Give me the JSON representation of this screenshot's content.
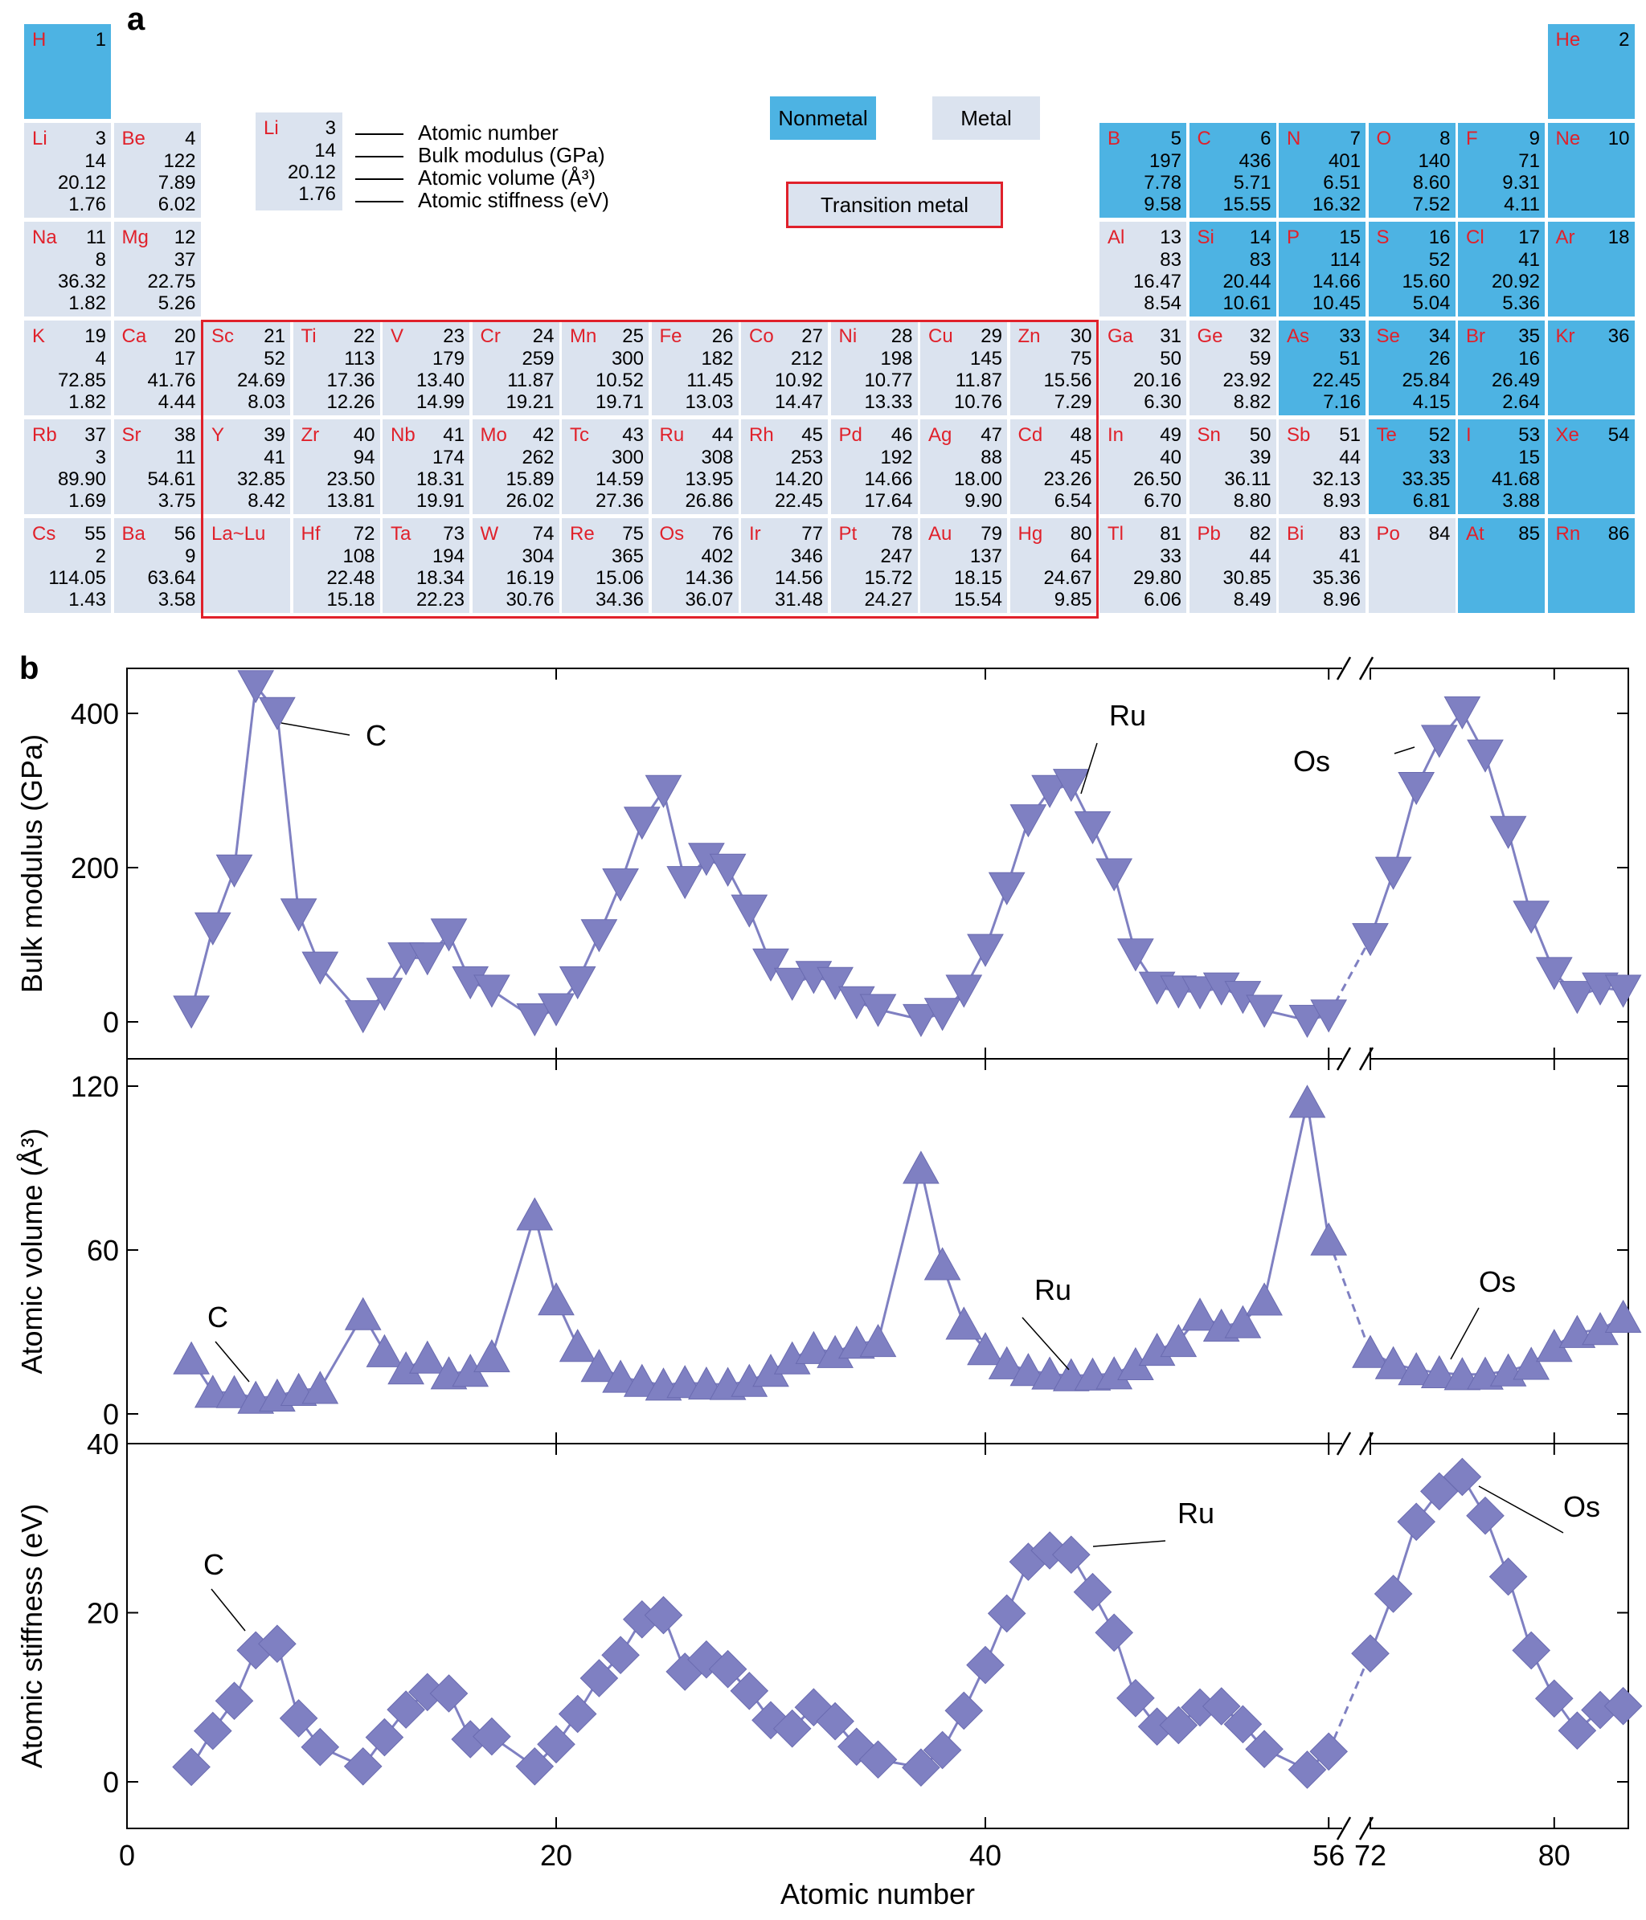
{
  "panel_a_label": "a",
  "panel_b_label": "b",
  "legend": {
    "nonmetal": "Nonmetal",
    "metal": "Metal",
    "transition_metal": "Transition metal",
    "key_symbol": "Li",
    "key_z": "3",
    "key_values": [
      "14",
      "20.12",
      "1.76"
    ],
    "key_labels": [
      "Atomic number",
      "Bulk modulus (GPa)",
      "Atomic volume (Å³)",
      "Atomic stiffness (eV)"
    ]
  },
  "elements": [
    {
      "sym": "H",
      "z": "1",
      "v": [],
      "cls": "nonmetal",
      "r": 0,
      "c": 0
    },
    {
      "sym": "He",
      "z": "2",
      "v": [],
      "cls": "nonmetal",
      "r": 0,
      "c": 17
    },
    {
      "sym": "Li",
      "z": "3",
      "v": [
        "14",
        "20.12",
        "1.76"
      ],
      "cls": "metal",
      "r": 1,
      "c": 0
    },
    {
      "sym": "Be",
      "z": "4",
      "v": [
        "122",
        "7.89",
        "6.02"
      ],
      "cls": "metal",
      "r": 1,
      "c": 1
    },
    {
      "sym": "B",
      "z": "5",
      "v": [
        "197",
        "7.78",
        "9.58"
      ],
      "cls": "nonmetal",
      "r": 1,
      "c": 12
    },
    {
      "sym": "C",
      "z": "6",
      "v": [
        "436",
        "5.71",
        "15.55"
      ],
      "cls": "nonmetal",
      "r": 1,
      "c": 13
    },
    {
      "sym": "N",
      "z": "7",
      "v": [
        "401",
        "6.51",
        "16.32"
      ],
      "cls": "nonmetal",
      "r": 1,
      "c": 14
    },
    {
      "sym": "O",
      "z": "8",
      "v": [
        "140",
        "8.60",
        "7.52"
      ],
      "cls": "nonmetal",
      "r": 1,
      "c": 15
    },
    {
      "sym": "F",
      "z": "9",
      "v": [
        "71",
        "9.31",
        "4.11"
      ],
      "cls": "nonmetal",
      "r": 1,
      "c": 16
    },
    {
      "sym": "Ne",
      "z": "10",
      "v": [],
      "cls": "nonmetal",
      "r": 1,
      "c": 17
    },
    {
      "sym": "Na",
      "z": "11",
      "v": [
        "8",
        "36.32",
        "1.82"
      ],
      "cls": "metal",
      "r": 2,
      "c": 0
    },
    {
      "sym": "Mg",
      "z": "12",
      "v": [
        "37",
        "22.75",
        "5.26"
      ],
      "cls": "metal",
      "r": 2,
      "c": 1
    },
    {
      "sym": "Al",
      "z": "13",
      "v": [
        "83",
        "16.47",
        "8.54"
      ],
      "cls": "metal",
      "r": 2,
      "c": 12
    },
    {
      "sym": "Si",
      "z": "14",
      "v": [
        "83",
        "20.44",
        "10.61"
      ],
      "cls": "nonmetal",
      "r": 2,
      "c": 13
    },
    {
      "sym": "P",
      "z": "15",
      "v": [
        "114",
        "14.66",
        "10.45"
      ],
      "cls": "nonmetal",
      "r": 2,
      "c": 14
    },
    {
      "sym": "S",
      "z": "16",
      "v": [
        "52",
        "15.60",
        "5.04"
      ],
      "cls": "nonmetal",
      "r": 2,
      "c": 15
    },
    {
      "sym": "Cl",
      "z": "17",
      "v": [
        "41",
        "20.92",
        "5.36"
      ],
      "cls": "nonmetal",
      "r": 2,
      "c": 16
    },
    {
      "sym": "Ar",
      "z": "18",
      "v": [],
      "cls": "nonmetal",
      "r": 2,
      "c": 17
    },
    {
      "sym": "K",
      "z": "19",
      "v": [
        "4",
        "72.85",
        "1.82"
      ],
      "cls": "metal",
      "r": 3,
      "c": 0
    },
    {
      "sym": "Ca",
      "z": "20",
      "v": [
        "17",
        "41.76",
        "4.44"
      ],
      "cls": "metal",
      "r": 3,
      "c": 1
    },
    {
      "sym": "Sc",
      "z": "21",
      "v": [
        "52",
        "24.69",
        "8.03"
      ],
      "cls": "metal",
      "r": 3,
      "c": 2
    },
    {
      "sym": "Ti",
      "z": "22",
      "v": [
        "113",
        "17.36",
        "12.26"
      ],
      "cls": "metal",
      "r": 3,
      "c": 3
    },
    {
      "sym": "V",
      "z": "23",
      "v": [
        "179",
        "13.40",
        "14.99"
      ],
      "cls": "metal",
      "r": 3,
      "c": 4
    },
    {
      "sym": "Cr",
      "z": "24",
      "v": [
        "259",
        "11.87",
        "19.21"
      ],
      "cls": "metal",
      "r": 3,
      "c": 5
    },
    {
      "sym": "Mn",
      "z": "25",
      "v": [
        "300",
        "10.52",
        "19.71"
      ],
      "cls": "metal",
      "r": 3,
      "c": 6
    },
    {
      "sym": "Fe",
      "z": "26",
      "v": [
        "182",
        "11.45",
        "13.03"
      ],
      "cls": "metal",
      "r": 3,
      "c": 7
    },
    {
      "sym": "Co",
      "z": "27",
      "v": [
        "212",
        "10.92",
        "14.47"
      ],
      "cls": "metal",
      "r": 3,
      "c": 8
    },
    {
      "sym": "Ni",
      "z": "28",
      "v": [
        "198",
        "10.77",
        "13.33"
      ],
      "cls": "metal",
      "r": 3,
      "c": 9
    },
    {
      "sym": "Cu",
      "z": "29",
      "v": [
        "145",
        "11.87",
        "10.76"
      ],
      "cls": "metal",
      "r": 3,
      "c": 10
    },
    {
      "sym": "Zn",
      "z": "30",
      "v": [
        "75",
        "15.56",
        "7.29"
      ],
      "cls": "metal",
      "r": 3,
      "c": 11
    },
    {
      "sym": "Ga",
      "z": "31",
      "v": [
        "50",
        "20.16",
        "6.30"
      ],
      "cls": "metal",
      "r": 3,
      "c": 12
    },
    {
      "sym": "Ge",
      "z": "32",
      "v": [
        "59",
        "23.92",
        "8.82"
      ],
      "cls": "metal",
      "r": 3,
      "c": 13
    },
    {
      "sym": "As",
      "z": "33",
      "v": [
        "51",
        "22.45",
        "7.16"
      ],
      "cls": "nonmetal",
      "r": 3,
      "c": 14
    },
    {
      "sym": "Se",
      "z": "34",
      "v": [
        "26",
        "25.84",
        "4.15"
      ],
      "cls": "nonmetal",
      "r": 3,
      "c": 15
    },
    {
      "sym": "Br",
      "z": "35",
      "v": [
        "16",
        "26.49",
        "2.64"
      ],
      "cls": "nonmetal",
      "r": 3,
      "c": 16
    },
    {
      "sym": "Kr",
      "z": "36",
      "v": [],
      "cls": "nonmetal",
      "r": 3,
      "c": 17
    },
    {
      "sym": "Rb",
      "z": "37",
      "v": [
        "3",
        "89.90",
        "1.69"
      ],
      "cls": "metal",
      "r": 4,
      "c": 0
    },
    {
      "sym": "Sr",
      "z": "38",
      "v": [
        "11",
        "54.61",
        "3.75"
      ],
      "cls": "metal",
      "r": 4,
      "c": 1
    },
    {
      "sym": "Y",
      "z": "39",
      "v": [
        "41",
        "32.85",
        "8.42"
      ],
      "cls": "metal",
      "r": 4,
      "c": 2
    },
    {
      "sym": "Zr",
      "z": "40",
      "v": [
        "94",
        "23.50",
        "13.81"
      ],
      "cls": "metal",
      "r": 4,
      "c": 3
    },
    {
      "sym": "Nb",
      "z": "41",
      "v": [
        "174",
        "18.31",
        "19.91"
      ],
      "cls": "metal",
      "r": 4,
      "c": 4
    },
    {
      "sym": "Mo",
      "z": "42",
      "v": [
        "262",
        "15.89",
        "26.02"
      ],
      "cls": "metal",
      "r": 4,
      "c": 5
    },
    {
      "sym": "Tc",
      "z": "43",
      "v": [
        "300",
        "14.59",
        "27.36"
      ],
      "cls": "metal",
      "r": 4,
      "c": 6
    },
    {
      "sym": "Ru",
      "z": "44",
      "v": [
        "308",
        "13.95",
        "26.86"
      ],
      "cls": "metal",
      "r": 4,
      "c": 7
    },
    {
      "sym": "Rh",
      "z": "45",
      "v": [
        "253",
        "14.20",
        "22.45"
      ],
      "cls": "metal",
      "r": 4,
      "c": 8
    },
    {
      "sym": "Pd",
      "z": "46",
      "v": [
        "192",
        "14.66",
        "17.64"
      ],
      "cls": "metal",
      "r": 4,
      "c": 9
    },
    {
      "sym": "Ag",
      "z": "47",
      "v": [
        "88",
        "18.00",
        "9.90"
      ],
      "cls": "metal",
      "r": 4,
      "c": 10
    },
    {
      "sym": "Cd",
      "z": "48",
      "v": [
        "45",
        "23.26",
        "6.54"
      ],
      "cls": "metal",
      "r": 4,
      "c": 11
    },
    {
      "sym": "In",
      "z": "49",
      "v": [
        "40",
        "26.50",
        "6.70"
      ],
      "cls": "metal",
      "r": 4,
      "c": 12
    },
    {
      "sym": "Sn",
      "z": "50",
      "v": [
        "39",
        "36.11",
        "8.80"
      ],
      "cls": "metal",
      "r": 4,
      "c": 13
    },
    {
      "sym": "Sb",
      "z": "51",
      "v": [
        "44",
        "32.13",
        "8.93"
      ],
      "cls": "metal",
      "r": 4,
      "c": 14
    },
    {
      "sym": "Te",
      "z": "52",
      "v": [
        "33",
        "33.35",
        "6.81"
      ],
      "cls": "nonmetal",
      "r": 4,
      "c": 15
    },
    {
      "sym": "I",
      "z": "53",
      "v": [
        "15",
        "41.68",
        "3.88"
      ],
      "cls": "nonmetal",
      "r": 4,
      "c": 16
    },
    {
      "sym": "Xe",
      "z": "54",
      "v": [],
      "cls": "nonmetal",
      "r": 4,
      "c": 17
    },
    {
      "sym": "Cs",
      "z": "55",
      "v": [
        "2",
        "114.05",
        "1.43"
      ],
      "cls": "metal",
      "r": 5,
      "c": 0
    },
    {
      "sym": "Ba",
      "z": "56",
      "v": [
        "9",
        "63.64",
        "3.58"
      ],
      "cls": "metal",
      "r": 5,
      "c": 1
    },
    {
      "sym": "La~Lu",
      "z": "",
      "v": [],
      "cls": "metal",
      "r": 5,
      "c": 2
    },
    {
      "sym": "Hf",
      "z": "72",
      "v": [
        "108",
        "22.48",
        "15.18"
      ],
      "cls": "metal",
      "r": 5,
      "c": 3
    },
    {
      "sym": "Ta",
      "z": "73",
      "v": [
        "194",
        "18.34",
        "22.23"
      ],
      "cls": "metal",
      "r": 5,
      "c": 4
    },
    {
      "sym": "W",
      "z": "74",
      "v": [
        "304",
        "16.19",
        "30.76"
      ],
      "cls": "metal",
      "r": 5,
      "c": 5
    },
    {
      "sym": "Re",
      "z": "75",
      "v": [
        "365",
        "15.06",
        "34.36"
      ],
      "cls": "metal",
      "r": 5,
      "c": 6
    },
    {
      "sym": "Os",
      "z": "76",
      "v": [
        "402",
        "14.36",
        "36.07"
      ],
      "cls": "metal",
      "r": 5,
      "c": 7
    },
    {
      "sym": "Ir",
      "z": "77",
      "v": [
        "346",
        "14.56",
        "31.48"
      ],
      "cls": "metal",
      "r": 5,
      "c": 8
    },
    {
      "sym": "Pt",
      "z": "78",
      "v": [
        "247",
        "15.72",
        "24.27"
      ],
      "cls": "metal",
      "r": 5,
      "c": 9
    },
    {
      "sym": "Au",
      "z": "79",
      "v": [
        "137",
        "18.15",
        "15.54"
      ],
      "cls": "metal",
      "r": 5,
      "c": 10
    },
    {
      "sym": "Hg",
      "z": "80",
      "v": [
        "64",
        "24.67",
        "9.85"
      ],
      "cls": "metal",
      "r": 5,
      "c": 11
    },
    {
      "sym": "Tl",
      "z": "81",
      "v": [
        "33",
        "29.80",
        "6.06"
      ],
      "cls": "metal",
      "r": 5,
      "c": 12
    },
    {
      "sym": "Pb",
      "z": "82",
      "v": [
        "44",
        "30.85",
        "8.49"
      ],
      "cls": "metal",
      "r": 5,
      "c": 13
    },
    {
      "sym": "Bi",
      "z": "83",
      "v": [
        "41",
        "35.36",
        "8.96"
      ],
      "cls": "metal",
      "r": 5,
      "c": 14
    },
    {
      "sym": "Po",
      "z": "84",
      "v": [],
      "cls": "metal",
      "r": 5,
      "c": 15
    },
    {
      "sym": "At",
      "z": "85",
      "v": [],
      "cls": "nonmetal",
      "r": 5,
      "c": 16
    },
    {
      "sym": "Rn",
      "z": "86",
      "v": [],
      "cls": "nonmetal",
      "r": 5,
      "c": 17
    }
  ],
  "chart_data": {
    "type": "scatter",
    "xlabel": "Atomic number",
    "x_ticks": [
      "0",
      "20",
      "40",
      "56",
      "72",
      "80"
    ],
    "axis_break": [
      56,
      72
    ],
    "x_segments": [
      [
        0,
        56
      ],
      [
        72,
        84
      ]
    ],
    "marker_color": "#7f80c2",
    "line_color": "#7f80c2",
    "x": [
      3,
      4,
      5,
      6,
      7,
      8,
      9,
      11,
      12,
      13,
      14,
      15,
      16,
      17,
      19,
      20,
      21,
      22,
      23,
      24,
      25,
      26,
      27,
      28,
      29,
      30,
      31,
      32,
      33,
      34,
      35,
      37,
      38,
      39,
      40,
      41,
      42,
      43,
      44,
      45,
      46,
      47,
      48,
      49,
      50,
      51,
      52,
      53,
      55,
      56,
      72,
      73,
      74,
      75,
      76,
      77,
      78,
      79,
      80,
      81,
      82,
      83
    ],
    "panels": [
      {
        "ylabel": "Bulk modulus (GPa)",
        "ylim": [
          -45,
          460
        ],
        "yticks": [
          0,
          200,
          400
        ],
        "marker": "triangle-down",
        "values": [
          14,
          122,
          197,
          436,
          401,
          140,
          71,
          8,
          37,
          83,
          83,
          114,
          52,
          41,
          4,
          17,
          52,
          113,
          179,
          259,
          300,
          182,
          212,
          198,
          145,
          75,
          50,
          59,
          51,
          26,
          16,
          3,
          11,
          41,
          94,
          174,
          262,
          300,
          308,
          253,
          192,
          88,
          45,
          40,
          39,
          44,
          33,
          15,
          2,
          9,
          108,
          194,
          304,
          365,
          402,
          346,
          247,
          137,
          64,
          33,
          44,
          41
        ],
        "annotations": [
          {
            "text": "C",
            "x": 6
          },
          {
            "text": "Ru",
            "x": 44
          },
          {
            "text": "Os",
            "x": 76
          }
        ]
      },
      {
        "ylabel": "Atomic volume (Å³)",
        "ylim": [
          0,
          122
        ],
        "yticks": [
          0,
          60,
          120
        ],
        "marker": "triangle-up",
        "values": [
          20.12,
          7.89,
          7.78,
          5.71,
          6.51,
          8.6,
          9.31,
          36.32,
          22.75,
          16.47,
          20.44,
          14.66,
          15.6,
          20.92,
          72.85,
          41.76,
          24.69,
          17.36,
          13.4,
          11.87,
          10.52,
          11.45,
          10.92,
          10.77,
          11.87,
          15.56,
          20.16,
          23.92,
          22.45,
          25.84,
          26.49,
          89.9,
          54.61,
          32.85,
          23.5,
          18.31,
          15.89,
          14.59,
          13.95,
          14.2,
          14.66,
          18.0,
          23.26,
          26.5,
          36.11,
          32.13,
          33.35,
          41.68,
          114.05,
          63.64,
          22.48,
          18.34,
          16.19,
          15.06,
          14.36,
          14.56,
          15.72,
          18.15,
          24.67,
          29.8,
          30.85,
          35.36
        ],
        "annotations": [
          {
            "text": "C",
            "x": 6
          },
          {
            "text": "Ru",
            "x": 44
          },
          {
            "text": "Os",
            "x": 76
          }
        ]
      },
      {
        "ylabel": "Atomic stiffness (eV)",
        "ylim": [
          -5,
          40
        ],
        "yticks": [
          0,
          20,
          40
        ],
        "marker": "diamond",
        "values": [
          1.76,
          6.02,
          9.58,
          15.55,
          16.32,
          7.52,
          4.11,
          1.82,
          5.26,
          8.54,
          10.61,
          10.45,
          5.04,
          5.36,
          1.82,
          4.44,
          8.03,
          12.26,
          14.99,
          19.21,
          19.71,
          13.03,
          14.47,
          13.33,
          10.76,
          7.29,
          6.3,
          8.82,
          7.16,
          4.15,
          2.64,
          1.69,
          3.75,
          8.42,
          13.81,
          19.91,
          26.02,
          27.36,
          26.86,
          22.45,
          17.64,
          9.9,
          6.54,
          6.7,
          8.8,
          8.93,
          6.81,
          3.88,
          1.43,
          3.58,
          15.18,
          22.23,
          30.76,
          34.36,
          36.07,
          31.48,
          24.27,
          15.54,
          9.85,
          6.06,
          8.49,
          8.96
        ],
        "annotations": [
          {
            "text": "C",
            "x": 6
          },
          {
            "text": "Ru",
            "x": 44
          },
          {
            "text": "Os",
            "x": 76
          }
        ]
      }
    ]
  }
}
